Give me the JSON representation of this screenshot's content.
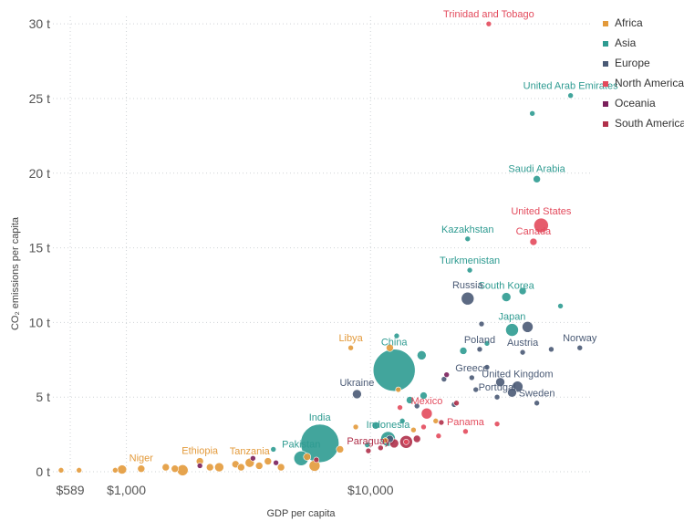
{
  "chart_data": {
    "type": "scatter",
    "xlabel": "GDP per capita",
    "ylabel": "CO₂ emissions per capita",
    "xscale": "log",
    "xlim": [
      500,
      80000
    ],
    "ylim": [
      0,
      30.5
    ],
    "x_ticks": [
      {
        "value": 589,
        "label": "$589"
      },
      {
        "value": 1000,
        "label": "$1,000"
      },
      {
        "value": 10000,
        "label": "$10,000"
      }
    ],
    "y_ticks": [
      {
        "value": 0,
        "label": "0 t"
      },
      {
        "value": 5,
        "label": "5 t"
      },
      {
        "value": 10,
        "label": "10 t"
      },
      {
        "value": 15,
        "label": "15 t"
      },
      {
        "value": 20,
        "label": "20 t"
      },
      {
        "value": 25,
        "label": "25 t"
      },
      {
        "value": 30,
        "label": "30 t"
      }
    ],
    "grid": "dotted",
    "legend_position": "top-right",
    "series": [
      {
        "name": "Africa",
        "color": "#e39a3b",
        "points": [
          {
            "x": 540,
            "y": 0.1,
            "r": 3
          },
          {
            "x": 640,
            "y": 0.1,
            "r": 3
          },
          {
            "x": 900,
            "y": 0.1,
            "r": 3
          },
          {
            "x": 960,
            "y": 0.15,
            "r": 5
          },
          {
            "x": 1150,
            "y": 0.2,
            "r": 4,
            "label": "Niger"
          },
          {
            "x": 1450,
            "y": 0.3,
            "r": 4
          },
          {
            "x": 1580,
            "y": 0.2,
            "r": 4
          },
          {
            "x": 1700,
            "y": 0.1,
            "r": 6
          },
          {
            "x": 2000,
            "y": 0.7,
            "r": 4,
            "label": "Ethiopia"
          },
          {
            "x": 2200,
            "y": 0.3,
            "r": 4
          },
          {
            "x": 2400,
            "y": 0.3,
            "r": 5
          },
          {
            "x": 2800,
            "y": 0.5,
            "r": 4
          },
          {
            "x": 2950,
            "y": 0.3,
            "r": 4
          },
          {
            "x": 3200,
            "y": 0.6,
            "r": 5,
            "label": "Tanzania"
          },
          {
            "x": 3500,
            "y": 0.4,
            "r": 4
          },
          {
            "x": 3800,
            "y": 0.7,
            "r": 4
          },
          {
            "x": 4300,
            "y": 0.3,
            "r": 4
          },
          {
            "x": 5500,
            "y": 1.0,
            "r": 4
          },
          {
            "x": 5900,
            "y": 0.4,
            "r": 6
          },
          {
            "x": 7500,
            "y": 1.5,
            "r": 4
          },
          {
            "x": 8300,
            "y": 8.3,
            "r": 3,
            "label": "Libya"
          },
          {
            "x": 8700,
            "y": 3.0,
            "r": 3
          },
          {
            "x": 11500,
            "y": 2.1,
            "r": 3
          },
          {
            "x": 12000,
            "y": 8.3,
            "r": 4
          },
          {
            "x": 13000,
            "y": 5.5,
            "r": 3
          },
          {
            "x": 15000,
            "y": 2.8,
            "r": 3
          },
          {
            "x": 18500,
            "y": 3.4,
            "r": 3
          }
        ]
      },
      {
        "name": "Asia",
        "color": "#2e9b91",
        "points": [
          {
            "x": 12500,
            "y": 6.8,
            "r": 23,
            "label": "China"
          },
          {
            "x": 6200,
            "y": 1.9,
            "r": 21,
            "label": "India"
          },
          {
            "x": 5200,
            "y": 0.9,
            "r": 8,
            "label": "Pakistan"
          },
          {
            "x": 11800,
            "y": 2.2,
            "r": 8,
            "label": "Indonesia"
          },
          {
            "x": 66000,
            "y": 25.2,
            "r": 3,
            "label": "United Arab Emirates"
          },
          {
            "x": 46000,
            "y": 24.0,
            "r": 3
          },
          {
            "x": 48000,
            "y": 19.6,
            "r": 4,
            "label": "Saudi Arabia"
          },
          {
            "x": 25000,
            "y": 15.6,
            "r": 3,
            "label": "Kazakhstan"
          },
          {
            "x": 25500,
            "y": 13.5,
            "r": 3,
            "label": "Turkmenistan"
          },
          {
            "x": 36000,
            "y": 11.7,
            "r": 5,
            "label": "South Korea"
          },
          {
            "x": 38000,
            "y": 9.5,
            "r": 7,
            "label": "Japan"
          },
          {
            "x": 60000,
            "y": 11.1,
            "r": 3
          },
          {
            "x": 16200,
            "y": 7.8,
            "r": 5
          },
          {
            "x": 14500,
            "y": 4.8,
            "r": 4
          },
          {
            "x": 16500,
            "y": 5.1,
            "r": 4
          },
          {
            "x": 13500,
            "y": 3.4,
            "r": 3
          },
          {
            "x": 10500,
            "y": 3.1,
            "r": 4
          },
          {
            "x": 4000,
            "y": 1.5,
            "r": 3
          },
          {
            "x": 9700,
            "y": 1.8,
            "r": 3
          },
          {
            "x": 24000,
            "y": 8.1,
            "r": 4
          },
          {
            "x": 30000,
            "y": 8.6,
            "r": 3
          },
          {
            "x": 42000,
            "y": 12.1,
            "r": 4
          },
          {
            "x": 12800,
            "y": 9.1,
            "r": 3
          }
        ]
      },
      {
        "name": "Europe",
        "color": "#4a5a75",
        "points": [
          {
            "x": 25000,
            "y": 11.6,
            "r": 7,
            "label": "Russia"
          },
          {
            "x": 8800,
            "y": 5.2,
            "r": 5,
            "label": "Ukraine"
          },
          {
            "x": 28000,
            "y": 8.2,
            "r": 3,
            "label": "Poland"
          },
          {
            "x": 42000,
            "y": 8.0,
            "r": 3,
            "label": "Austria"
          },
          {
            "x": 72000,
            "y": 8.3,
            "r": 3,
            "label": "Norway"
          },
          {
            "x": 26000,
            "y": 6.3,
            "r": 3,
            "label": "Greece"
          },
          {
            "x": 33000,
            "y": 5.0,
            "r": 3,
            "label": "Portugal"
          },
          {
            "x": 40000,
            "y": 5.7,
            "r": 6,
            "label": "United Kingdom"
          },
          {
            "x": 48000,
            "y": 4.6,
            "r": 3,
            "label": "Sweden"
          },
          {
            "x": 20000,
            "y": 6.2,
            "r": 3
          },
          {
            "x": 22000,
            "y": 4.5,
            "r": 3
          },
          {
            "x": 27000,
            "y": 5.5,
            "r": 3
          },
          {
            "x": 30000,
            "y": 7.0,
            "r": 3
          },
          {
            "x": 34000,
            "y": 6.0,
            "r": 5
          },
          {
            "x": 38000,
            "y": 5.3,
            "r": 5
          },
          {
            "x": 44000,
            "y": 9.7,
            "r": 6
          },
          {
            "x": 55000,
            "y": 8.2,
            "r": 3
          },
          {
            "x": 15500,
            "y": 4.4,
            "r": 3
          },
          {
            "x": 12000,
            "y": 2.2,
            "r": 4
          },
          {
            "x": 28500,
            "y": 9.9,
            "r": 3
          }
        ]
      },
      {
        "name": "North America",
        "color": "#e34a5c",
        "points": [
          {
            "x": 30500,
            "y": 30.0,
            "r": 3,
            "label": "Trinidad and Tobago"
          },
          {
            "x": 50000,
            "y": 16.5,
            "r": 8,
            "label": "United States"
          },
          {
            "x": 46500,
            "y": 15.4,
            "r": 4,
            "label": "Canada"
          },
          {
            "x": 17000,
            "y": 3.9,
            "r": 6,
            "label": "Mexico"
          },
          {
            "x": 24500,
            "y": 2.7,
            "r": 3,
            "label": "Panama"
          },
          {
            "x": 14000,
            "y": 2.0,
            "r": 3
          },
          {
            "x": 16500,
            "y": 3.0,
            "r": 3
          },
          {
            "x": 13200,
            "y": 4.3,
            "r": 3
          },
          {
            "x": 19000,
            "y": 2.4,
            "r": 3
          },
          {
            "x": 33000,
            "y": 3.2,
            "r": 3
          }
        ]
      },
      {
        "name": "Oceania",
        "color": "#7a1f5b",
        "points": [
          {
            "x": 2000,
            "y": 0.4,
            "r": 3
          },
          {
            "x": 3300,
            "y": 0.9,
            "r": 3
          },
          {
            "x": 4100,
            "y": 0.6,
            "r": 3
          },
          {
            "x": 20500,
            "y": 6.5,
            "r": 3
          }
        ]
      },
      {
        "name": "South America",
        "color": "#b0304a",
        "points": [
          {
            "x": 9800,
            "y": 1.4,
            "r": 3,
            "label": "Paraguay"
          },
          {
            "x": 14000,
            "y": 2.0,
            "r": 7
          },
          {
            "x": 12500,
            "y": 1.9,
            "r": 5
          },
          {
            "x": 15500,
            "y": 2.2,
            "r": 4
          },
          {
            "x": 11000,
            "y": 1.6,
            "r": 3
          },
          {
            "x": 6000,
            "y": 0.8,
            "r": 3
          },
          {
            "x": 22500,
            "y": 4.6,
            "r": 3
          },
          {
            "x": 19500,
            "y": 3.3,
            "r": 3
          }
        ]
      }
    ]
  }
}
